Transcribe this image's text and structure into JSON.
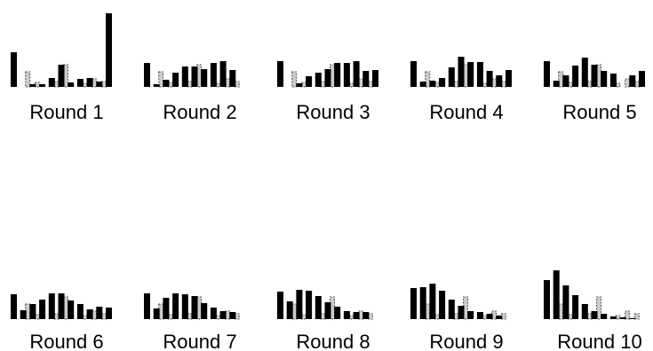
{
  "chart_data": [
    {
      "type": "bar",
      "label": "Round 1",
      "series": [
        {
          "style": "solid black",
          "values": [
            39,
            0,
            3,
            3,
            10,
            25,
            5,
            9,
            10,
            6,
            83
          ]
        },
        {
          "style": "dashed gray",
          "values": [
            0,
            17,
            5,
            0,
            6,
            25,
            0,
            4,
            9,
            6,
            0
          ]
        }
      ]
    },
    {
      "type": "bar",
      "label": "Round 2",
      "series": [
        {
          "style": "solid black",
          "values": [
            27,
            3,
            8,
            16,
            23,
            23,
            20,
            27,
            29,
            19,
            0
          ]
        },
        {
          "style": "dashed gray",
          "values": [
            0,
            17,
            5,
            0,
            6,
            25,
            0,
            4,
            9,
            6,
            0
          ]
        }
      ]
    },
    {
      "type": "bar",
      "label": "Round 3",
      "series": [
        {
          "style": "solid black",
          "values": [
            29,
            0,
            4,
            12,
            16,
            20,
            27,
            27,
            29,
            18,
            19
          ]
        },
        {
          "style": "dashed gray",
          "values": [
            0,
            17,
            5,
            0,
            6,
            25,
            0,
            4,
            9,
            6,
            0
          ]
        }
      ]
    },
    {
      "type": "bar",
      "label": "Round 4",
      "series": [
        {
          "style": "solid black",
          "values": [
            29,
            6,
            7,
            10,
            22,
            34,
            28,
            28,
            18,
            13,
            19
          ]
        },
        {
          "style": "dashed gray",
          "values": [
            0,
            17,
            5,
            0,
            6,
            25,
            0,
            4,
            9,
            6,
            0
          ]
        }
      ]
    },
    {
      "type": "bar",
      "label": "Round 5",
      "series": [
        {
          "style": "solid black",
          "values": [
            29,
            7,
            13,
            24,
            33,
            25,
            18,
            15,
            0,
            13,
            18
          ]
        },
        {
          "style": "dashed gray",
          "values": [
            0,
            17,
            5,
            0,
            6,
            25,
            0,
            4,
            9,
            6,
            0
          ]
        }
      ]
    },
    {
      "type": "bar",
      "label": "Round 6",
      "series": [
        {
          "style": "solid black",
          "values": [
            28,
            10,
            17,
            22,
            29,
            29,
            21,
            17,
            11,
            14,
            13
          ]
        },
        {
          "style": "dashed gray",
          "values": [
            0,
            17,
            5,
            0,
            6,
            25,
            0,
            4,
            9,
            6,
            0
          ]
        }
      ]
    },
    {
      "type": "bar",
      "label": "Round 7",
      "series": [
        {
          "style": "solid black",
          "values": [
            29,
            12,
            24,
            29,
            28,
            26,
            18,
            13,
            9,
            8,
            0
          ]
        },
        {
          "style": "dashed gray",
          "values": [
            0,
            17,
            5,
            0,
            6,
            25,
            0,
            4,
            9,
            6,
            0
          ]
        }
      ]
    },
    {
      "type": "bar",
      "label": "Round 8",
      "series": [
        {
          "style": "solid black",
          "values": [
            31,
            20,
            33,
            32,
            26,
            19,
            14,
            9,
            8,
            8,
            0
          ]
        },
        {
          "style": "dashed gray",
          "values": [
            0,
            17,
            5,
            0,
            6,
            25,
            0,
            4,
            9,
            6,
            0
          ]
        }
      ]
    },
    {
      "type": "bar",
      "label": "Round 9",
      "series": [
        {
          "style": "solid black",
          "values": [
            35,
            36,
            40,
            32,
            22,
            15,
            9,
            8,
            6,
            4,
            0
          ]
        },
        {
          "style": "dashed gray",
          "values": [
            0,
            17,
            5,
            0,
            6,
            25,
            0,
            4,
            9,
            6,
            0
          ]
        }
      ]
    },
    {
      "type": "bar",
      "label": "Round 10",
      "series": [
        {
          "style": "solid black",
          "values": [
            44,
            55,
            38,
            27,
            17,
            9,
            6,
            3,
            2,
            1,
            0
          ]
        },
        {
          "style": "dashed gray",
          "values": [
            0,
            17,
            5,
            0,
            6,
            25,
            0,
            4,
            9,
            6,
            0
          ]
        }
      ]
    }
  ],
  "colors": {
    "solid": "#000000",
    "dashed_fill": "#cccccc",
    "dashed_stroke": "#555555",
    "label": "#000000"
  }
}
